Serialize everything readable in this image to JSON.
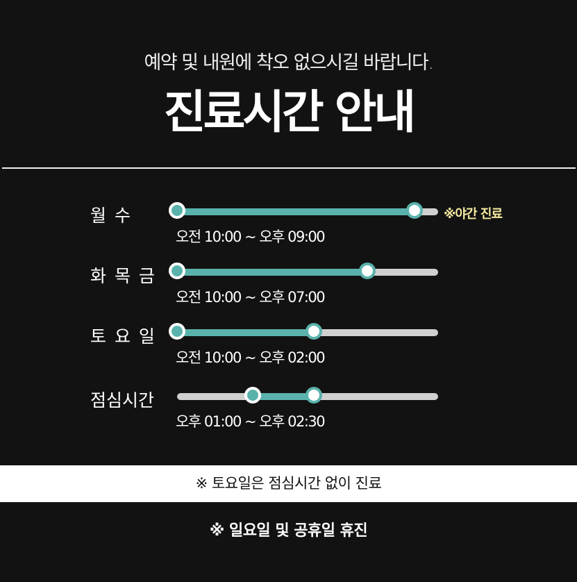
{
  "header": {
    "subtitle": "예약 및 내원에 착오 없으시길 바랍니다.",
    "title": "진료시간 안내"
  },
  "colors": {
    "accent": "#5ab2ac",
    "track": "#d0d0d0",
    "night_note": "#f6eaa0",
    "background": "#121212"
  },
  "schedule": [
    {
      "label": "월 수",
      "time": "오전 10:00 ~ 오후 09:00",
      "start_pct": 0,
      "end_pct": 91,
      "note": "※야간 진료"
    },
    {
      "label": "화 목 금",
      "time": "오전 10:00 ~ 오후 07:00",
      "start_pct": 0,
      "end_pct": 73
    },
    {
      "label": "토 요 일",
      "time": "오전 10:00 ~ 오후 02:00",
      "start_pct": 0,
      "end_pct": 52.5
    },
    {
      "label": "점심시간",
      "time": "오후 01:00 ~ 오후 02:30",
      "start_pct": 29,
      "end_pct": 52.5
    }
  ],
  "notices": {
    "saturday": "※ 토요일은 점심시간 없이 진료",
    "holiday": "※ 일요일 및 공휴일 휴진"
  }
}
